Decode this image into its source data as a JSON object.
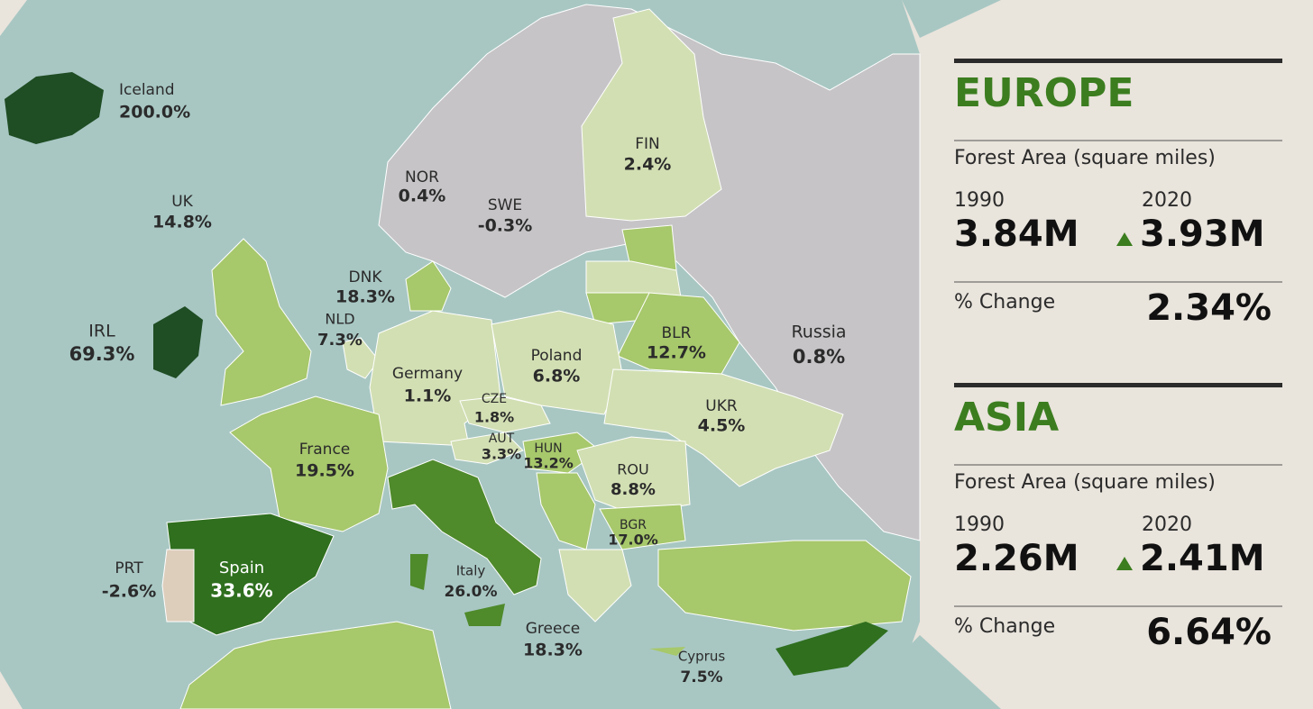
{
  "map": {
    "countries": [
      {
        "name": "Iceland",
        "change": "200.0%"
      },
      {
        "name": "UK",
        "change": "14.8%"
      },
      {
        "name": "NOR",
        "change": "0.4%"
      },
      {
        "name": "SWE",
        "change": "-0.3%"
      },
      {
        "name": "FIN",
        "change": "2.4%"
      },
      {
        "name": "DNK",
        "change": "18.3%"
      },
      {
        "name": "NLD",
        "change": "7.3%"
      },
      {
        "name": "IRL",
        "change": "69.3%"
      },
      {
        "name": "Germany",
        "change": "1.1%"
      },
      {
        "name": "Poland",
        "change": "6.8%"
      },
      {
        "name": "BLR",
        "change": "12.7%"
      },
      {
        "name": "Russia",
        "change": "0.8%"
      },
      {
        "name": "CZE",
        "change": "1.8%"
      },
      {
        "name": "UKR",
        "change": "4.5%"
      },
      {
        "name": "AUT",
        "change": "3.3%"
      },
      {
        "name": "HUN",
        "change": "13.2%"
      },
      {
        "name": "France",
        "change": "19.5%"
      },
      {
        "name": "ROU",
        "change": "8.8%"
      },
      {
        "name": "Spain",
        "change": "33.6%"
      },
      {
        "name": "PRT",
        "change": "-2.6%"
      },
      {
        "name": "BGR",
        "change": "17.0%"
      },
      {
        "name": "Italy",
        "change": "26.0%"
      },
      {
        "name": "Greece",
        "change": "18.3%"
      },
      {
        "name": "Cyprus",
        "change": "7.5%"
      }
    ]
  },
  "panels": [
    {
      "title": "EUROPE",
      "metric": "Forest Area (square miles)",
      "year_start": "1990",
      "year_end": "2020",
      "value_start": "3.84M",
      "value_end": "3.93M",
      "change_label": "% Change",
      "change": "2.34%"
    },
    {
      "title": "ASIA",
      "metric": "Forest Area (square miles)",
      "year_start": "1990",
      "year_end": "2020",
      "value_start": "2.26M",
      "value_end": "2.41M",
      "change_label": "% Change",
      "change": "6.64%"
    }
  ]
}
